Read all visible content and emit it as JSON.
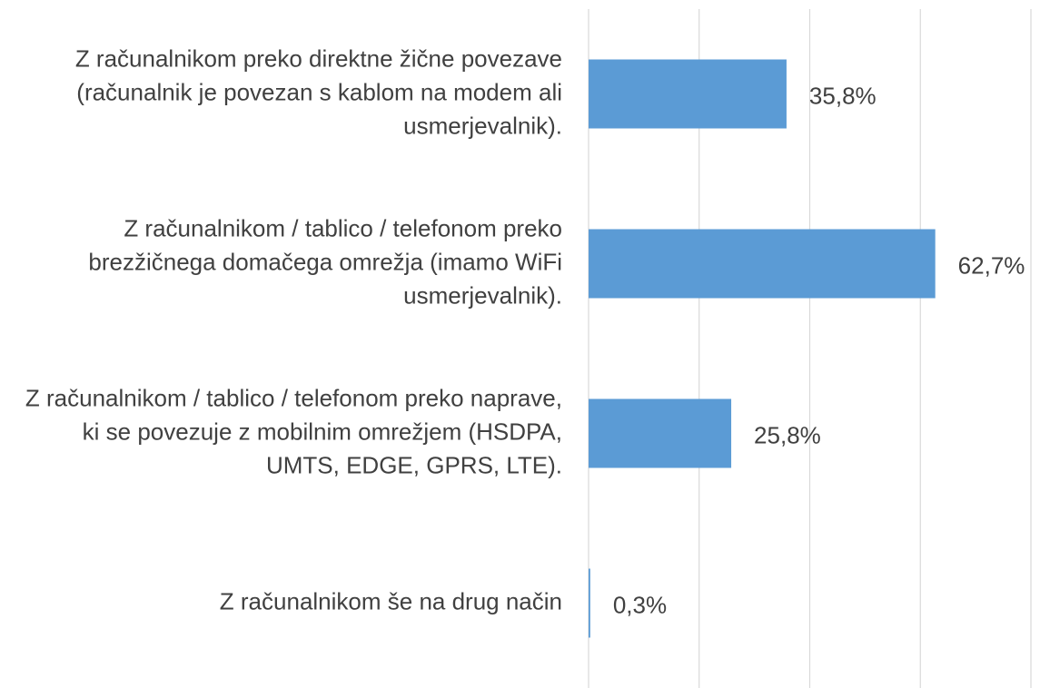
{
  "chart_data": {
    "type": "bar",
    "orientation": "horizontal",
    "categories": [
      "Z računalnikom preko direktne žične povezave (računalnik je povezan s kablom na modem ali usmerjevalnik).",
      "Z računalnikom / tablico / telefonom preko brezžičnega domačega omrežja (imamo WiFi usmerjevalnik).",
      "Z računalnikom / tablico / telefonom preko naprave, ki se povezuje z mobilnim omrežjem (HSDPA, UMTS, EDGE, GPRS, LTE).",
      "Z računalnikom še na drug način"
    ],
    "values": [
      35.8,
      62.7,
      25.8,
      0.3
    ],
    "value_labels": [
      "35,8%",
      "62,7%",
      "25,8%",
      "0,3%"
    ],
    "color": "#5b9bd5",
    "xlim": [
      0,
      80
    ],
    "xticks": [
      0,
      20,
      40,
      60,
      80
    ],
    "grid": true
  }
}
